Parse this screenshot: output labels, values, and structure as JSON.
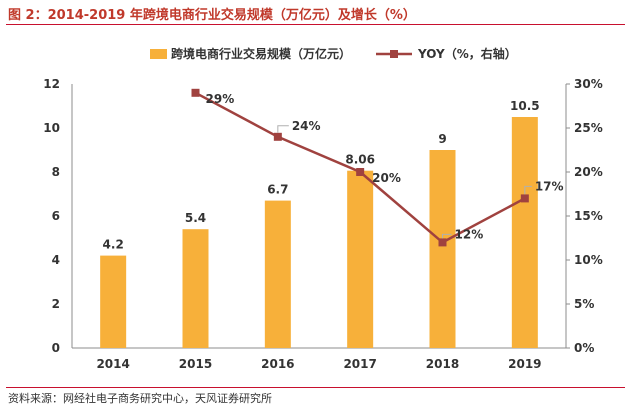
{
  "figure": {
    "title": "图 2：2014-2019 年跨境电商行业交易规模（万亿元）及增长（%）",
    "source": "资料来源：网经社电子商务研究中心，天风证券研究所"
  },
  "colors": {
    "bar": "#f7b03a",
    "line": "#a0423f",
    "title": "#c0392b",
    "rule": "#c8102e",
    "axis": "#8c8c8c",
    "text": "#333333"
  },
  "chart_data": {
    "type": "bar+line",
    "categories": [
      "2014",
      "2015",
      "2016",
      "2017",
      "2018",
      "2019"
    ],
    "series": [
      {
        "name": "跨境电商行业交易规模（万亿元）",
        "type": "bar",
        "axis": "left",
        "values": [
          4.2,
          5.4,
          6.7,
          8.06,
          9,
          10.5
        ],
        "labels": [
          "4.2",
          "5.4",
          "6.7",
          "8.06",
          "9",
          "10.5"
        ]
      },
      {
        "name": "YOY（%，右轴）",
        "type": "line",
        "axis": "right",
        "values": [
          null,
          29,
          24,
          20,
          12,
          17
        ],
        "labels": [
          "",
          "29%",
          "24%",
          "20%",
          "12%",
          "17%"
        ]
      }
    ],
    "y_left": {
      "min": 0,
      "max": 12,
      "ticks": [
        "0",
        "2",
        "4",
        "6",
        "8",
        "10",
        "12"
      ]
    },
    "y_right": {
      "min": 0,
      "max": 30,
      "ticks": [
        "0%",
        "5%",
        "10%",
        "15%",
        "20%",
        "25%",
        "30%"
      ]
    },
    "grid": false,
    "legend": "top"
  }
}
